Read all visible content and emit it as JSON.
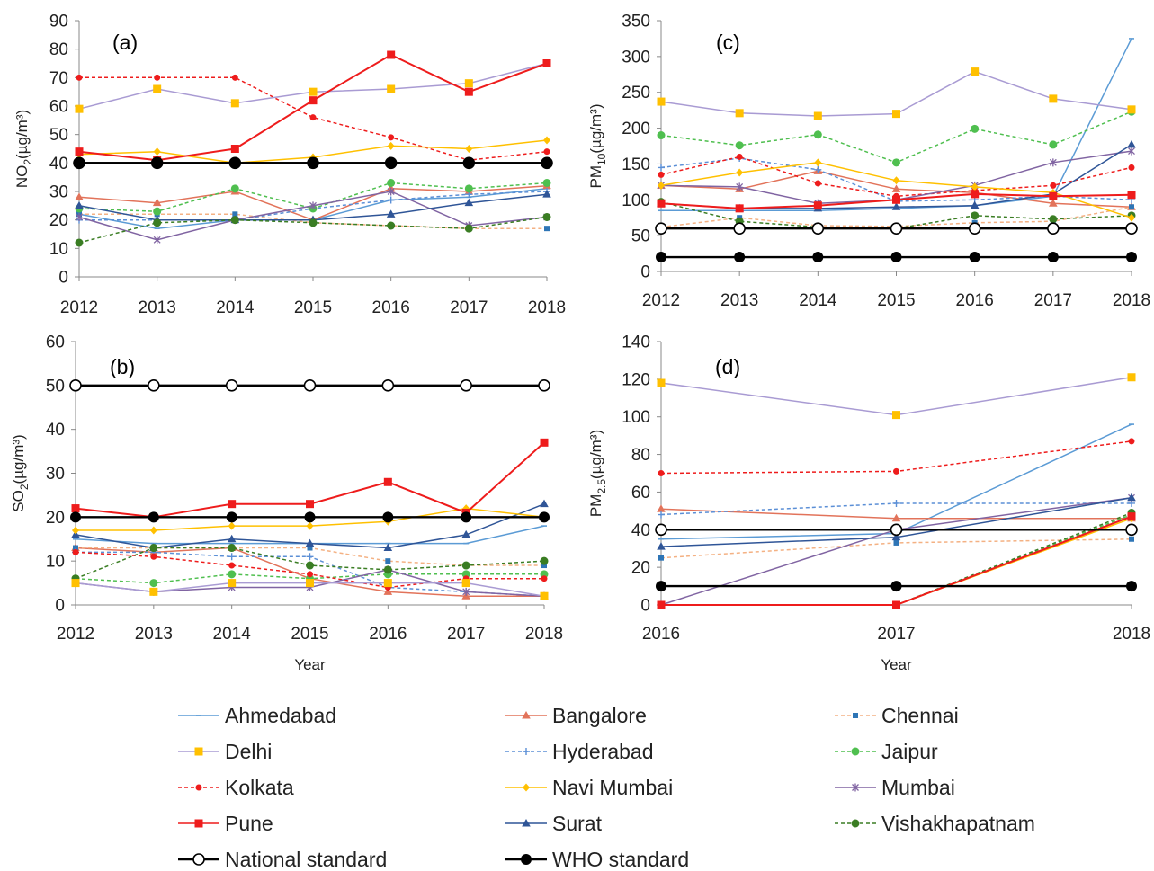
{
  "colors": {
    "Ahmedabad": "#5b9bd5",
    "Bangalore": "#e2735a",
    "Chennai": "#f4b183",
    "Delhi": "#a99bd3",
    "Hyderabad": "#5b8fd6",
    "Jaipur": "#4fbf4f",
    "Kolkata": "#ee1c1c",
    "Navi Mumbai": "#ffc000",
    "Mumbai": "#8064a2",
    "Pune": "#ee1c1c",
    "Surat": "#2f5597",
    "Vishakhapatnam": "#3a7d23",
    "National standard": "#000000",
    "WHO standard": "#000000",
    "delhi_marker": "#ffc000",
    "chennai_marker": "#2e75b6"
  },
  "legend": [
    {
      "name": "Ahmedabad",
      "marker": "dash",
      "dashed": false,
      "color_key": "Ahmedabad"
    },
    {
      "name": "Bangalore",
      "marker": "triangle",
      "dashed": false,
      "color_key": "Bangalore"
    },
    {
      "name": "Chennai",
      "marker": "square-small",
      "dashed": true,
      "color_key": "Chennai"
    },
    {
      "name": "Delhi",
      "marker": "square",
      "dashed": false,
      "color_key": "Delhi"
    },
    {
      "name": "Hyderabad",
      "marker": "plus",
      "dashed": true,
      "color_key": "Hyderabad"
    },
    {
      "name": "Jaipur",
      "marker": "circle",
      "dashed": true,
      "color_key": "Jaipur"
    },
    {
      "name": "Kolkata",
      "marker": "circle-small",
      "dashed": true,
      "color_key": "Kolkata"
    },
    {
      "name": "Navi Mumbai",
      "marker": "diamond",
      "dashed": false,
      "color_key": "Navi Mumbai"
    },
    {
      "name": "Mumbai",
      "marker": "star",
      "dashed": false,
      "color_key": "Mumbai"
    },
    {
      "name": "Pune",
      "marker": "square",
      "dashed": false,
      "color_key": "Pune"
    },
    {
      "name": "Surat",
      "marker": "triangle",
      "dashed": false,
      "color_key": "Surat"
    },
    {
      "name": "Vishakhapatnam",
      "marker": "circle",
      "dashed": true,
      "color_key": "Vishakhapatnam"
    },
    {
      "name": "National standard",
      "marker": "open-circle",
      "dashed": false,
      "color_key": "National standard"
    },
    {
      "name": "WHO standard",
      "marker": "filled-circle",
      "dashed": false,
      "color_key": "WHO standard"
    }
  ],
  "chart_data": [
    {
      "panel": "(a)",
      "type": "line",
      "ylabel_main": "NO",
      "ylabel_sub": "2",
      "ylabel_unit": "(µg/m³)",
      "xlabel": "",
      "x": [
        2012,
        2013,
        2014,
        2015,
        2016,
        2017,
        2018
      ],
      "ylim": [
        0,
        90
      ],
      "yticks": [
        0,
        10,
        20,
        30,
        40,
        50,
        60,
        70,
        80,
        90
      ],
      "grid": false,
      "series": [
        {
          "name": "Ahmedabad",
          "values": [
            22,
            17,
            20,
            20,
            27,
            28,
            31
          ]
        },
        {
          "name": "Bangalore",
          "values": [
            28,
            26,
            30,
            20,
            31,
            30,
            32
          ]
        },
        {
          "name": "Chennai",
          "values": [
            22,
            22,
            22,
            19,
            18,
            17,
            17
          ]
        },
        {
          "name": "Delhi",
          "values": [
            59,
            66,
            61,
            65,
            66,
            68,
            75
          ]
        },
        {
          "name": "Hyderabad",
          "values": [
            20,
            20,
            20,
            24,
            27,
            29,
            30
          ]
        },
        {
          "name": "Jaipur",
          "values": [
            24,
            23,
            31,
            24,
            33,
            31,
            33
          ]
        },
        {
          "name": "Kolkata",
          "values": [
            70,
            70,
            70,
            56,
            49,
            41,
            44
          ]
        },
        {
          "name": "Navi Mumbai",
          "values": [
            43,
            44,
            40,
            42,
            46,
            45,
            48
          ]
        },
        {
          "name": "Mumbai",
          "values": [
            21,
            13,
            20,
            25,
            30,
            18,
            21
          ]
        },
        {
          "name": "Pune",
          "values": [
            44,
            41,
            45,
            62,
            78,
            65,
            75
          ]
        },
        {
          "name": "Surat",
          "values": [
            25,
            20,
            20,
            20,
            22,
            26,
            29
          ]
        },
        {
          "name": "Vishakhapatnam",
          "values": [
            12,
            19,
            20,
            19,
            18,
            17,
            21
          ]
        },
        {
          "name": "National standard",
          "values": [
            40,
            40,
            40,
            40,
            40,
            40,
            40
          ]
        },
        {
          "name": "WHO standard",
          "values": [
            40,
            40,
            40,
            40,
            40,
            40,
            40
          ]
        }
      ]
    },
    {
      "panel": "(b)",
      "type": "line",
      "ylabel_main": "SO",
      "ylabel_sub": "2",
      "ylabel_unit": "(µg/m³)",
      "xlabel": "Year",
      "x": [
        2012,
        2013,
        2014,
        2015,
        2016,
        2017,
        2018
      ],
      "ylim": [
        0,
        60
      ],
      "yticks": [
        0,
        10,
        20,
        30,
        40,
        50,
        60
      ],
      "grid": false,
      "series": [
        {
          "name": "Ahmedabad",
          "values": [
            15,
            14,
            14,
            14,
            14,
            14,
            18
          ]
        },
        {
          "name": "Bangalore",
          "values": [
            13,
            12,
            13,
            6,
            3,
            2,
            2
          ]
        },
        {
          "name": "Chennai",
          "values": [
            13,
            13,
            13,
            13,
            10,
            9,
            9
          ]
        },
        {
          "name": "Delhi",
          "values": [
            5,
            3,
            5,
            5,
            5,
            5,
            2
          ]
        },
        {
          "name": "Hyderabad",
          "values": [
            12,
            12,
            11,
            11,
            4,
            3,
            2
          ]
        },
        {
          "name": "Jaipur",
          "values": [
            6,
            5,
            7,
            6,
            7,
            7,
            7
          ]
        },
        {
          "name": "Kolkata",
          "values": [
            12,
            11,
            9,
            7,
            4,
            6,
            6
          ]
        },
        {
          "name": "Navi Mumbai",
          "values": [
            17,
            17,
            18,
            18,
            19,
            22,
            20
          ]
        },
        {
          "name": "Mumbai",
          "values": [
            5,
            3,
            4,
            4,
            8,
            3,
            2
          ]
        },
        {
          "name": "Pune",
          "values": [
            22,
            20,
            23,
            23,
            28,
            21,
            37
          ]
        },
        {
          "name": "Surat",
          "values": [
            16,
            13,
            15,
            14,
            13,
            16,
            23
          ]
        },
        {
          "name": "Vishakhapatnam",
          "values": [
            6,
            13,
            13,
            9,
            8,
            9,
            10
          ]
        },
        {
          "name": "National standard",
          "values": [
            50,
            50,
            50,
            50,
            50,
            50,
            50
          ]
        },
        {
          "name": "WHO standard",
          "values": [
            20,
            20,
            20,
            20,
            20,
            20,
            20
          ]
        }
      ]
    },
    {
      "panel": "(c)",
      "type": "line",
      "ylabel_main": "PM",
      "ylabel_sub": "10",
      "ylabel_unit": "(µg/m³)",
      "xlabel": "",
      "x": [
        2012,
        2013,
        2014,
        2015,
        2016,
        2017,
        2018
      ],
      "ylim": [
        0,
        350
      ],
      "yticks": [
        0,
        50,
        100,
        150,
        200,
        250,
        300,
        350
      ],
      "grid": false,
      "series": [
        {
          "name": "Ahmedabad",
          "values": [
            85,
            85,
            85,
            88,
            92,
            105,
            325
          ]
        },
        {
          "name": "Bangalore",
          "values": [
            120,
            115,
            140,
            115,
            110,
            95,
            90
          ]
        },
        {
          "name": "Chennai",
          "values": [
            62,
            75,
            64,
            63,
            68,
            70,
            90
          ]
        },
        {
          "name": "Delhi",
          "values": [
            237,
            221,
            217,
            220,
            279,
            241,
            226
          ]
        },
        {
          "name": "Hyderabad",
          "values": [
            145,
            158,
            142,
            98,
            100,
            105,
            100
          ]
        },
        {
          "name": "Jaipur",
          "values": [
            190,
            176,
            191,
            152,
            199,
            177,
            223
          ]
        },
        {
          "name": "Kolkata",
          "values": [
            135,
            160,
            123,
            105,
            113,
            120,
            145
          ]
        },
        {
          "name": "Navi Mumbai",
          "values": [
            120,
            138,
            152,
            127,
            118,
            110,
            75
          ]
        },
        {
          "name": "Mumbai",
          "values": [
            120,
            118,
            95,
            100,
            120,
            152,
            168
          ]
        },
        {
          "name": "Pune",
          "values": [
            95,
            88,
            92,
            100,
            108,
            105,
            107
          ]
        },
        {
          "name": "Surat",
          "values": [
            95,
            88,
            88,
            90,
            92,
            108,
            177
          ]
        },
        {
          "name": "Vishakhapatnam",
          "values": [
            97,
            70,
            62,
            60,
            78,
            73,
            78
          ]
        },
        {
          "name": "National standard",
          "values": [
            60,
            60,
            60,
            60,
            60,
            60,
            60
          ]
        },
        {
          "name": "WHO standard",
          "values": [
            20,
            20,
            20,
            20,
            20,
            20,
            20
          ]
        }
      ]
    },
    {
      "panel": "(d)",
      "type": "line",
      "ylabel_main": "PM",
      "ylabel_sub": "2.5",
      "ylabel_unit": "(µg/m³)",
      "xlabel": "Year",
      "x": [
        2016,
        2017,
        2018
      ],
      "ylim": [
        0,
        140
      ],
      "yticks": [
        0,
        20,
        40,
        60,
        80,
        100,
        120,
        140
      ],
      "grid": false,
      "series": [
        {
          "name": "Ahmedabad",
          "values": [
            35,
            38,
            96
          ]
        },
        {
          "name": "Bangalore",
          "values": [
            51,
            46,
            46
          ]
        },
        {
          "name": "Chennai",
          "values": [
            25,
            33,
            35
          ]
        },
        {
          "name": "Delhi",
          "values": [
            118,
            101,
            121
          ]
        },
        {
          "name": "Hyderabad",
          "values": [
            48,
            54,
            54
          ]
        },
        {
          "name": "Jaipur",
          "values": [
            0,
            0,
            48
          ]
        },
        {
          "name": "Kolkata",
          "values": [
            70,
            71,
            87
          ]
        },
        {
          "name": "Navi Mumbai",
          "values": [
            0,
            0,
            46
          ]
        },
        {
          "name": "Mumbai",
          "values": [
            0,
            40,
            57
          ]
        },
        {
          "name": "Pune",
          "values": [
            0,
            0,
            47
          ]
        },
        {
          "name": "Surat",
          "values": [
            31,
            36,
            57
          ]
        },
        {
          "name": "Vishakhapatnam",
          "values": [
            0,
            0,
            49
          ]
        },
        {
          "name": "National standard",
          "values": [
            40,
            40,
            40
          ]
        },
        {
          "name": "WHO standard",
          "values": [
            10,
            10,
            10
          ]
        }
      ]
    }
  ]
}
